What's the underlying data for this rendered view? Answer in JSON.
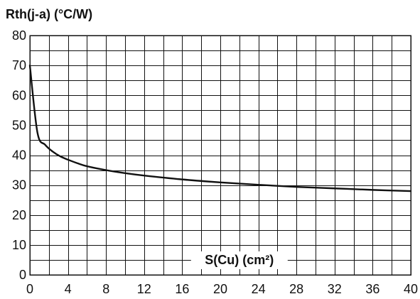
{
  "chart_data": {
    "type": "line",
    "ylabel": "Rth(j-a) (°C/W)",
    "xlabel": "S(Cu) (cm²)",
    "xlim": [
      0,
      40
    ],
    "ylim": [
      0,
      80
    ],
    "x_ticks": [
      "0",
      "4",
      "8",
      "12",
      "16",
      "20",
      "24",
      "28",
      "32",
      "36",
      "40"
    ],
    "y_ticks": [
      "0",
      "10",
      "20",
      "30",
      "40",
      "50",
      "60",
      "70",
      "80"
    ],
    "grid": true,
    "x_minor_step": 2,
    "y_minor_step": 5,
    "series": [
      {
        "x": [
          0,
          0.8,
          1.6,
          2.4,
          3.2,
          4,
          5,
          6,
          8,
          10,
          12,
          16,
          20,
          24,
          28,
          32,
          36,
          40
        ],
        "values": [
          70,
          47.5,
          43.5,
          41.2,
          39.6,
          38.5,
          37.3,
          36.3,
          35,
          34,
          33.2,
          31.9,
          30.9,
          30.1,
          29.4,
          28.9,
          28.4,
          28
        ]
      }
    ]
  }
}
